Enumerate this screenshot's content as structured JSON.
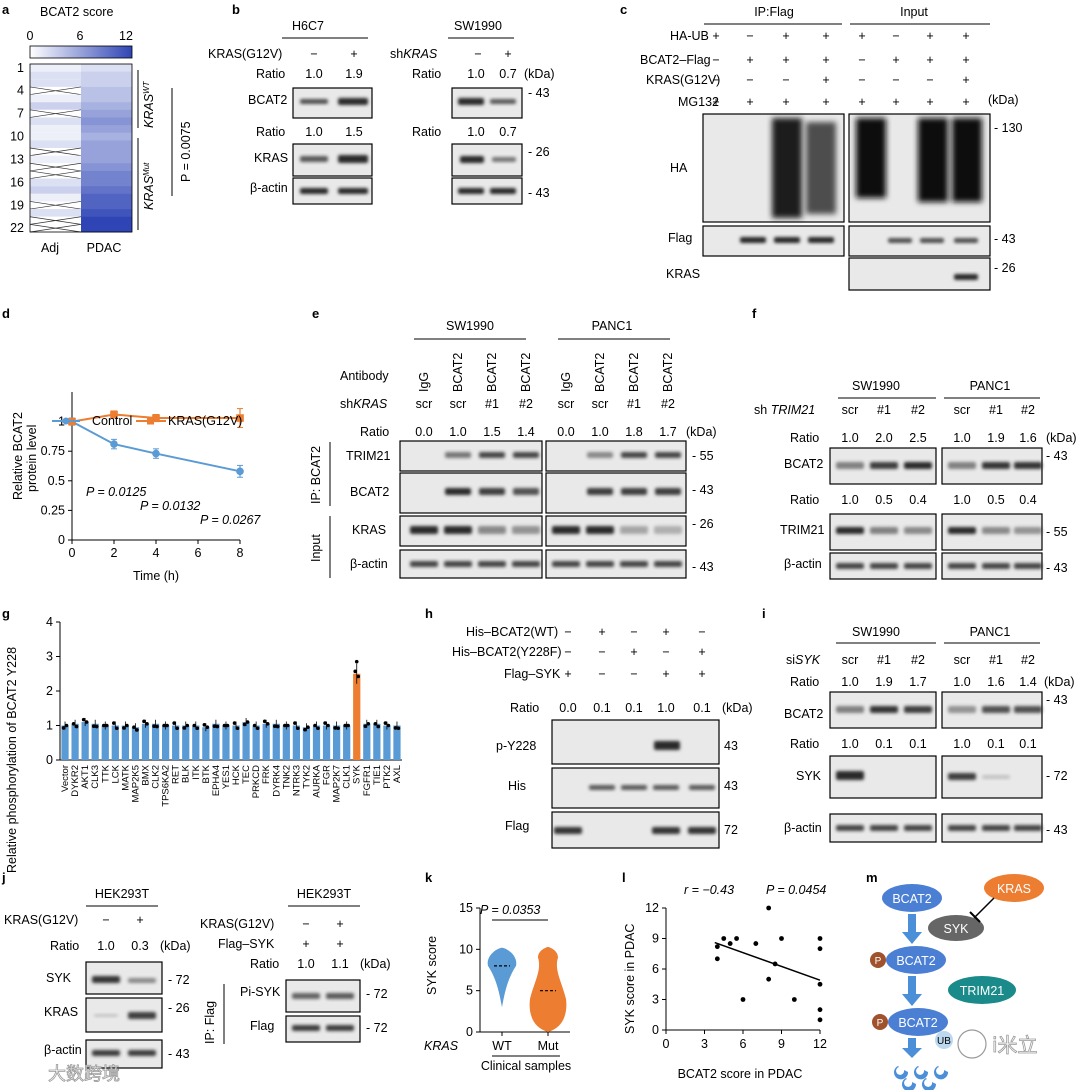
{
  "figure": {
    "panel_labels": [
      "a",
      "b",
      "c",
      "d",
      "e",
      "f",
      "g",
      "h",
      "i",
      "j",
      "k",
      "l",
      "m"
    ],
    "watermark_left": "大数跨境",
    "watermark_right": "i米立"
  },
  "a": {
    "title": "BCAT2 score",
    "scale_ticks": [
      "0",
      "6",
      "12"
    ],
    "row_ticks": [
      "1",
      "4",
      "7",
      "10",
      "13",
      "16",
      "19",
      "22"
    ],
    "columns": [
      "Adj",
      "PDAC"
    ],
    "group_wt": "KRAS",
    "group_wt_sup": "WT",
    "group_mut": "KRAS",
    "group_mut_sup": "Mut",
    "pvalue": "P = 0.0075"
  },
  "b": {
    "cell_left": "H6C7",
    "cell_right": "SW1990",
    "cond_left": "KRAS(G12V)",
    "cond_right_prefix": "sh",
    "cond_right_gene": "KRAS",
    "lane_signs_left": [
      "−",
      "+"
    ],
    "lane_signs_right": [
      "−",
      "+"
    ],
    "ratio_label": "Ratio",
    "kda": "(kDa)",
    "ratio1_left": [
      "1.0",
      "1.9"
    ],
    "ratio1_right": [
      "1.0",
      "0.7"
    ],
    "ratio2_left": [
      "1.0",
      "1.5"
    ],
    "ratio2_right": [
      "1.0",
      "0.7"
    ],
    "rows": [
      "BCAT2",
      "KRAS",
      "β-actin"
    ],
    "mw": [
      "43",
      "26",
      "43"
    ]
  },
  "c": {
    "hdr_ip": "IP:Flag",
    "hdr_input": "Input",
    "rows": [
      "HA-UB",
      "BCAT2–Flag",
      "KRAS(G12V)",
      "MG132"
    ],
    "signs": [
      [
        "+",
        "−",
        "+",
        "+",
        "+",
        "−",
        "+",
        "+"
      ],
      [
        "−",
        "+",
        "+",
        "+",
        "−",
        "+",
        "+",
        "+"
      ],
      [
        "−",
        "−",
        "−",
        "+",
        "−",
        "−",
        "−",
        "+"
      ],
      [
        "+",
        "+",
        "+",
        "+",
        "+",
        "+",
        "+",
        "+"
      ]
    ],
    "kda": "(kDa)",
    "blots": [
      "HA",
      "Flag",
      "KRAS"
    ],
    "mw": [
      "130",
      "43",
      "26"
    ]
  },
  "d": {
    "ylabel1": "Relative BCAT2",
    "ylabel2": "protein level",
    "xlabel": "Time (h)",
    "legend": [
      "Control",
      "KRAS(G12V)"
    ],
    "pvals": [
      "P = 0.0125",
      "P = 0.0132",
      "P = 0.0267"
    ]
  },
  "e": {
    "cells": [
      "SW1990",
      "PANC1"
    ],
    "antibody_label": "Antibody",
    "antibodies": [
      "IgG",
      "BCAT2",
      "BCAT2",
      "BCAT2",
      "IgG",
      "BCAT2",
      "BCAT2",
      "BCAT2"
    ],
    "sh_prefix": "sh",
    "sh_gene": "KRAS",
    "sh": [
      "scr",
      "scr",
      "#1",
      "#2",
      "scr",
      "scr",
      "#1",
      "#2"
    ],
    "ratio_label": "Ratio",
    "ratios": [
      "0.0",
      "1.0",
      "1.5",
      "1.4",
      "0.0",
      "1.0",
      "1.8",
      "1.7"
    ],
    "kda": "(kDa)",
    "rows": [
      "TRIM21",
      "BCAT2",
      "KRAS",
      "β-actin"
    ],
    "mw": [
      "55",
      "43",
      "26",
      "43"
    ],
    "side_ip": "IP: BCAT2",
    "side_input": "Input"
  },
  "f": {
    "cells": [
      "SW1990",
      "PANC1"
    ],
    "sh_prefix": "sh ",
    "sh_gene": "TRIM21",
    "sh": [
      "scr",
      "#1",
      "#2",
      "scr",
      "#1",
      "#2"
    ],
    "ratio_label": "Ratio",
    "kda": "(kDa)",
    "ratio1": [
      "1.0",
      "2.0",
      "2.5",
      "1.0",
      "1.9",
      "1.6"
    ],
    "ratio2": [
      "1.0",
      "0.5",
      "0.4",
      "1.0",
      "0.5",
      "0.4"
    ],
    "rows": [
      "BCAT2",
      "TRIM21",
      "β-actin"
    ],
    "mw": [
      "43",
      "55",
      "43"
    ]
  },
  "h": {
    "rows": [
      "His–BCAT2(WT)",
      "His–BCAT2(Y228F)",
      "Flag–SYK"
    ],
    "signs": [
      [
        "−",
        "+",
        "−",
        "+",
        "−"
      ],
      [
        "−",
        "−",
        "+",
        "−",
        "+"
      ],
      [
        "+",
        "−",
        "−",
        "+",
        "+"
      ]
    ],
    "ratio_label": "Ratio",
    "ratios": [
      "0.0",
      "0.1",
      "0.1",
      "1.0",
      "0.1"
    ],
    "kda": "(kDa)",
    "blots": [
      "p-Y228",
      "His",
      "Flag"
    ],
    "mw": [
      "43",
      "43",
      "72"
    ]
  },
  "i": {
    "cells": [
      "SW1990",
      "PANC1"
    ],
    "si_prefix": "si",
    "si_gene": "SYK",
    "si": [
      "scr",
      "#1",
      "#2",
      "scr",
      "#1",
      "#2"
    ],
    "ratio_label": "Ratio",
    "kda": "(kDa)",
    "ratio1": [
      "1.0",
      "1.9",
      "1.7",
      "1.0",
      "1.6",
      "1.4"
    ],
    "ratio2": [
      "1.0",
      "0.1",
      "0.1",
      "1.0",
      "0.1",
      "0.1"
    ],
    "rows": [
      "BCAT2",
      "SYK",
      "β-actin"
    ],
    "mw": [
      "43",
      "72",
      "43"
    ]
  },
  "j": {
    "cell_left": "HEK293T",
    "cell_right": "HEK293T",
    "cond": "KRAS(G12V)",
    "cond2": "Flag–SYK",
    "signs_left": [
      "−",
      "+"
    ],
    "signs_right": [
      "−",
      "+"
    ],
    "signs_right2": [
      "+",
      "+"
    ],
    "ratio_label": "Ratio",
    "kda": "(kDa)",
    "ratio_left": [
      "1.0",
      "0.3"
    ],
    "ratio_right": [
      "1.0",
      "1.1"
    ],
    "rows_left": [
      "SYK",
      "KRAS",
      "β-actin"
    ],
    "mw_left": [
      "72",
      "26",
      "43"
    ],
    "rows_right": [
      "Pi-SYK",
      "Flag"
    ],
    "mw_right": [
      "72",
      "72"
    ],
    "side_ip": "IP: Flag"
  },
  "k": {
    "pvalue": "P = 0.0353",
    "xlabel": "Clinical samples",
    "gene": "KRAS"
  },
  "l": {
    "r": "r = −0.43",
    "pvalue": "P = 0.0454",
    "ylabel": "SYK score in PDAC",
    "xlabel": "BCAT2 score in PDAC"
  },
  "m": {
    "nodes": [
      "BCAT2",
      "KRAS",
      "SYK",
      "BCAT2",
      "TRIM21",
      "BCAT2"
    ],
    "p_badge": "P",
    "ub_badge": "UB"
  },
  "chart_data": [
    {
      "id": "a",
      "type": "heatmap",
      "title": "BCAT2 score",
      "columns": [
        "Adj",
        "PDAC"
      ],
      "range": [
        0,
        12
      ],
      "adj_values": [
        1,
        2,
        2,
        null,
        1,
        3,
        null,
        2,
        1,
        1,
        2,
        null,
        1,
        null,
        null,
        2,
        3,
        1,
        null,
        2,
        null,
        null
      ],
      "pdac_values": [
        2,
        3,
        3,
        4,
        4,
        5,
        6,
        7,
        6,
        5,
        6,
        6,
        6,
        7,
        8,
        8,
        9,
        10,
        10,
        11,
        12,
        12
      ]
    },
    {
      "id": "d",
      "type": "line",
      "xlabel": "Time (h)",
      "ylabel": "Relative BCAT2 protein level",
      "x": [
        0,
        2,
        4,
        8
      ],
      "xlim": [
        0,
        8
      ],
      "ylim": [
        0,
        1.25
      ],
      "xticks": [
        0,
        2,
        4,
        6,
        8
      ],
      "yticks": [
        0,
        0.25,
        0.5,
        0.75,
        1
      ],
      "series": [
        {
          "name": "Control",
          "color": "#5b9bd5",
          "values": [
            1.0,
            0.81,
            0.73,
            0.58
          ],
          "err": [
            0.03,
            0.04,
            0.04,
            0.05
          ]
        },
        {
          "name": "KRAS(G12V)",
          "color": "#ed7d31",
          "values": [
            1.0,
            1.06,
            1.03,
            1.03
          ],
          "err": [
            0.02,
            0.03,
            0.03,
            0.08
          ]
        }
      ]
    },
    {
      "id": "g",
      "type": "bar",
      "ylabel": "Relative phosphorylation of BCAT2 Y228",
      "ylim": [
        0,
        4
      ],
      "yticks": [
        0,
        1,
        2,
        3,
        4
      ],
      "categories": [
        "Vector",
        "DYKR2",
        "AKT1",
        "CLK3",
        "TTK",
        "LCK",
        "MATK",
        "MAP2K5",
        "BMX",
        "CLK2",
        "TPS6KA2",
        "RET",
        "BLK",
        "ITK",
        "BTK",
        "EPHA4",
        "YES1",
        "HCK",
        "TEC",
        "PRKCD",
        "FRK",
        "DYRK4",
        "TNK2",
        "NTRK3",
        "TYK2",
        "AURKA",
        "FGR",
        "MAP2K7",
        "CLK1",
        "SYK",
        "FGFR1",
        "TIE1",
        "PTK2",
        "AXL"
      ],
      "values": [
        1.0,
        1.05,
        1.1,
        1.05,
        1.0,
        1.0,
        1.0,
        0.95,
        1.05,
        1.05,
        1.0,
        1.0,
        1.0,
        1.0,
        0.95,
        1.05,
        1.0,
        1.0,
        1.1,
        1.0,
        1.05,
        1.05,
        1.0,
        1.0,
        0.95,
        1.0,
        1.0,
        1.0,
        1.0,
        2.5,
        1.05,
        1.05,
        1.0,
        1.0
      ],
      "highlight": "SYK",
      "colors": {
        "bar": "#5b9bd5",
        "highlight": "#ed7d31"
      }
    },
    {
      "id": "k",
      "type": "violin",
      "ylabel": "SYK score",
      "ylim": [
        0,
        15
      ],
      "yticks": [
        0,
        5,
        10,
        15
      ],
      "categories": [
        "WT",
        "Mut"
      ],
      "medians": [
        8,
        5
      ],
      "ranges": [
        [
          3,
          10
        ],
        [
          0,
          10
        ]
      ],
      "colors": [
        "#5b9bd5",
        "#ed7d31"
      ]
    },
    {
      "id": "l",
      "type": "scatter",
      "xlabel": "BCAT2 score in PDAC",
      "ylabel": "SYK score in PDAC",
      "xlim": [
        0,
        12
      ],
      "ylim": [
        0,
        12
      ],
      "xticks": [
        0,
        3,
        6,
        9,
        12
      ],
      "yticks": [
        0,
        3,
        6,
        9,
        12
      ],
      "points": [
        [
          4,
          8.2
        ],
        [
          4,
          7
        ],
        [
          4.5,
          9
        ],
        [
          5,
          8.5
        ],
        [
          5.5,
          9
        ],
        [
          6,
          3
        ],
        [
          7,
          8.5
        ],
        [
          8,
          12
        ],
        [
          8,
          5
        ],
        [
          8.5,
          6.5
        ],
        [
          9,
          9
        ],
        [
          10,
          3
        ],
        [
          12,
          9
        ],
        [
          12,
          8
        ],
        [
          12,
          4.5
        ],
        [
          12,
          2
        ],
        [
          12,
          1
        ]
      ],
      "fit": [
        [
          3.8,
          8.6
        ],
        [
          12,
          4.9
        ]
      ]
    }
  ]
}
